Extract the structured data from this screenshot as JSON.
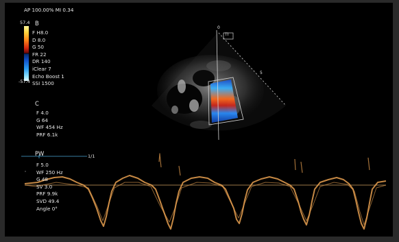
{
  "header": {
    "ap_mi": "AP 100.00%  MI 0.34"
  },
  "color_scale": {
    "max": "57.4",
    "min": "-57.4"
  },
  "b_mode": {
    "label": "B",
    "params": [
      "F H8.0",
      "D 8.0",
      "G 50",
      "FR 22",
      "DR 140",
      "iClear 7",
      "Echo Boost 1",
      "SSI 1500"
    ]
  },
  "c_mode": {
    "label": "C",
    "params": [
      "F 4.0",
      "G 64",
      "WF 454 Hz",
      "PRF 6.1k"
    ]
  },
  "pw_mode": {
    "label": "PW",
    "ratio": "1/1",
    "params": [
      "F 5.0",
      "WF 250 Hz",
      "G 48",
      "SV 3.0",
      "PRF 9.9k",
      "SVD 49.4",
      "Angle   0°"
    ]
  },
  "sector": {
    "depth_top": "0",
    "depth_mid": "5",
    "tag": "TI"
  },
  "colors": {
    "doppler": "#e8a050",
    "text": "#e8e8e8"
  }
}
